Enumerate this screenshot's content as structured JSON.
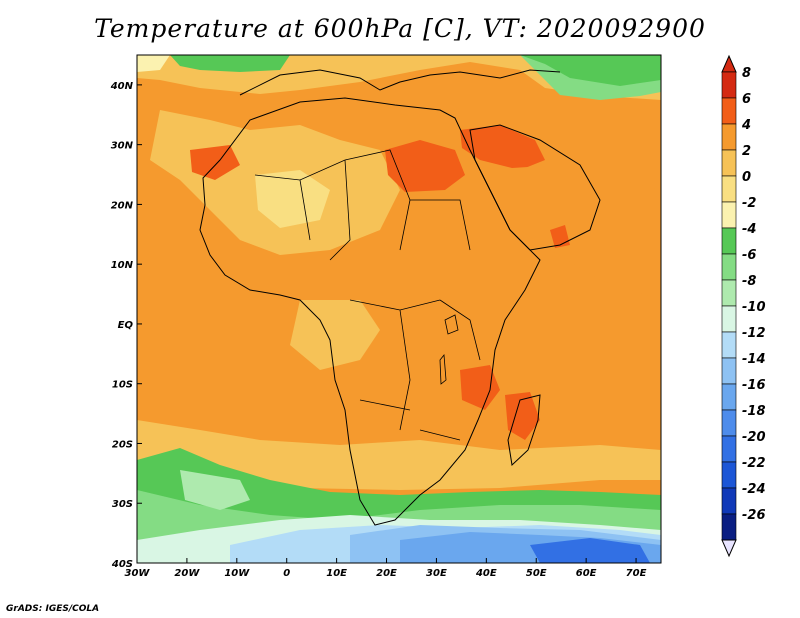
{
  "title": "Temperature at 600hPa [C], VT: 2020092900",
  "footer": "GrADS: IGES/COLA",
  "chart_data": {
    "type": "heatmap",
    "variable": "Temperature at 600hPa",
    "units": "C",
    "valid_time": "2020092900",
    "x_ticks": [
      "30W",
      "20W",
      "10W",
      "0",
      "10E",
      "20E",
      "30E",
      "40E",
      "50E",
      "60E",
      "70E"
    ],
    "y_ticks": [
      "40N",
      "30N",
      "20N",
      "10N",
      "EQ",
      "10S",
      "20S",
      "30S",
      "40S"
    ],
    "lon_range": [
      -30,
      75
    ],
    "lat_range": [
      -40,
      45
    ],
    "colorbar_levels": [
      8,
      6,
      4,
      2,
      0,
      -2,
      -4,
      -6,
      -8,
      -10,
      -12,
      -14,
      -16,
      -18,
      -20,
      -22,
      -24,
      -26
    ],
    "colorbar_colors": [
      "#d42a12",
      "#f25e18",
      "#f59a2e",
      "#f6c257",
      "#f9df82",
      "#fbf2b0",
      "#56c856",
      "#84dc84",
      "#aeeaae",
      "#d9f6e4",
      "#b3dcf7",
      "#8ec2f3",
      "#6aa7ee",
      "#4e8ceb",
      "#3270e4",
      "#1c56d6",
      "#1039b8",
      "#0a1e82"
    ],
    "colors": {
      "warm_deep": "#d42a12",
      "warm_orange": "#f25e18",
      "orange": "#f59a2e",
      "light_orange": "#f6c257",
      "pale_yellow": "#f9df82",
      "green": "#56c856",
      "light_blue": "#b3dcf7",
      "blue": "#4e8ceb"
    }
  }
}
